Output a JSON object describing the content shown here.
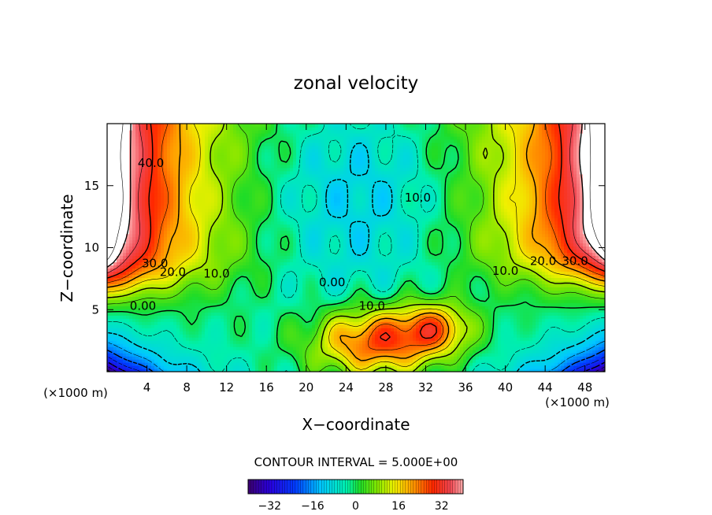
{
  "chart_data": {
    "type": "heatmap",
    "title": "zonal velocity",
    "xlabel": "X−coordinate",
    "ylabel": "Z−coordinate",
    "x_unit_label": "(×1000 m)",
    "z_unit_label": "(×1000 m)",
    "xlim": [
      0,
      50
    ],
    "ylim": [
      0,
      20
    ],
    "x_ticks": [
      4,
      8,
      12,
      16,
      20,
      24,
      28,
      32,
      36,
      40,
      44,
      48
    ],
    "y_ticks": [
      5,
      10,
      15
    ],
    "contour_interval_label": "CONTOUR INTERVAL = 5.000E+00",
    "colorbar": {
      "range": [
        -40,
        40
      ],
      "ticks": [
        -32,
        -16,
        0,
        16,
        32
      ]
    },
    "contour_labels": [
      {
        "text": "40.0",
        "x": 4.4,
        "z": 16.5
      },
      {
        "text": "30.0",
        "x": 4.8,
        "z": 8.4
      },
      {
        "text": "20.0",
        "x": 6.6,
        "z": 7.7
      },
      {
        "text": "10.0",
        "x": 11.0,
        "z": 7.6
      },
      {
        "text": "0.00",
        "x": 3.6,
        "z": 5.0
      },
      {
        "text": "0.00",
        "x": 22.6,
        "z": 6.9
      },
      {
        "text": "10.0",
        "x": 26.6,
        "z": 5.0
      },
      {
        "text": "10.0",
        "x": 31.2,
        "z": 13.7
      },
      {
        "text": "10.0",
        "x": 40.0,
        "z": 7.8
      },
      {
        "text": "20.0",
        "x": 43.8,
        "z": 8.6
      },
      {
        "text": "30.0",
        "x": 47.0,
        "z": 8.6
      }
    ],
    "field_features": [
      {
        "kind": "jet",
        "x": 0,
        "z": 15,
        "peak": 45
      },
      {
        "kind": "jet",
        "x": 50,
        "z": 15,
        "peak": 45
      },
      {
        "kind": "core",
        "x": 26,
        "z": 13.5,
        "peak": -20
      },
      {
        "kind": "core",
        "x": 27,
        "z": 2.5,
        "peak": 30
      },
      {
        "kind": "core",
        "x": 33,
        "z": 3.5,
        "peak": 22
      },
      {
        "kind": "core",
        "x": 1,
        "z": 1,
        "peak": -38
      },
      {
        "kind": "core",
        "x": 49,
        "z": 1,
        "peak": -38
      }
    ]
  }
}
